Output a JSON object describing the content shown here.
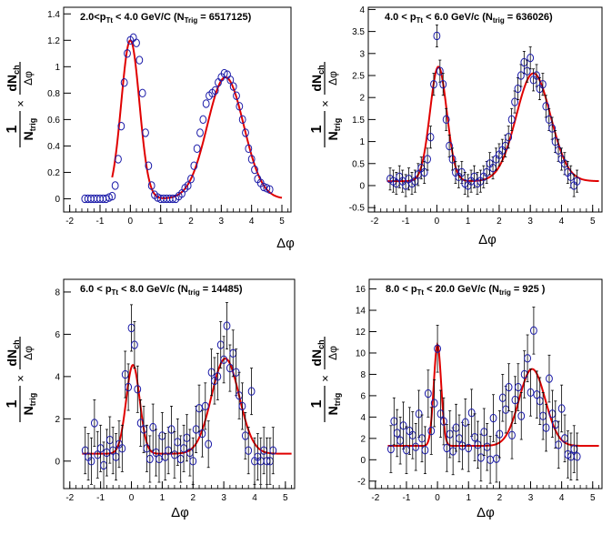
{
  "chart_data": [
    {
      "type": "scatter",
      "title_parts": [
        "2.0<p",
        "Tt",
        " < 4.0 GeV/C (N",
        "Trig",
        " = 6517125)"
      ],
      "xlabel": "Δφ",
      "ylabel_parts": [
        "1",
        "N",
        "trig",
        "×",
        "dN",
        "ch",
        "Δφ"
      ],
      "xlim": [
        -2.2,
        5.3
      ],
      "ylim": [
        -0.1,
        1.45
      ],
      "xticks": [
        -2,
        -1,
        0,
        1,
        2,
        3,
        4,
        5
      ],
      "yticks": [
        0,
        0.2,
        0.4,
        0.6,
        0.8,
        1,
        1.2,
        1.4
      ],
      "ytick_labels": [
        "0",
        "0.2",
        "0.4",
        "0.6",
        "0.8",
        "1",
        "1.2",
        "1.4"
      ],
      "fit": {
        "base": 0.0,
        "near": {
          "A": 1.2,
          "mu": 0.0,
          "sigma": 0.3
        },
        "away": {
          "A": 0.92,
          "mu": 3.14,
          "sigma": 0.6
        },
        "x_range": [
          -0.6,
          5.0
        ],
        "color": "#e00000"
      },
      "series": [
        {
          "x": [
            -1.5,
            -1.4,
            -1.3,
            -1.2,
            -1.1,
            -1.0,
            -0.9,
            -0.8,
            -0.7,
            -0.6,
            -0.5,
            -0.4,
            -0.3,
            -0.2,
            -0.1,
            0.0,
            0.1,
            0.2,
            0.3,
            0.4,
            0.5,
            0.6,
            0.7,
            0.8,
            0.9,
            1.0,
            1.1,
            1.2,
            1.3,
            1.4,
            1.5,
            1.6,
            1.7,
            1.8,
            1.9,
            2.0,
            2.1,
            2.2,
            2.3,
            2.4,
            2.5,
            2.6,
            2.7,
            2.8,
            2.9,
            3.0,
            3.1,
            3.2,
            3.3,
            3.4,
            3.5,
            3.6,
            3.7,
            3.8,
            3.9,
            4.0,
            4.1,
            4.2,
            4.3,
            4.4,
            4.5,
            4.6
          ],
          "y": [
            0,
            0,
            0,
            0,
            0,
            0,
            0,
            0,
            0.01,
            0.02,
            0.1,
            0.3,
            0.55,
            0.88,
            1.1,
            1.2,
            1.22,
            1.18,
            1.05,
            0.8,
            0.5,
            0.25,
            0.1,
            0.03,
            0.01,
            0,
            0,
            0,
            0,
            0,
            0,
            0.02,
            0.04,
            0.08,
            0.1,
            0.15,
            0.25,
            0.38,
            0.5,
            0.6,
            0.72,
            0.78,
            0.8,
            0.82,
            0.88,
            0.92,
            0.95,
            0.94,
            0.9,
            0.85,
            0.78,
            0.7,
            0.6,
            0.5,
            0.38,
            0.3,
            0.22,
            0.15,
            0.12,
            0.09,
            0.08,
            0.07
          ],
          "err": 0.02
        }
      ]
    },
    {
      "type": "scatter",
      "title_parts": [
        "4.0 < p",
        "Tt",
        " < 6.0 GeV/c (N",
        "trig",
        " =  636026)"
      ],
      "xlabel": "Δφ",
      "ylabel_parts": [
        "1",
        "N",
        "trig",
        "×",
        "dN",
        "ch",
        "Δφ"
      ],
      "xlim": [
        -2.2,
        5.3
      ],
      "ylim": [
        -0.6,
        4.05
      ],
      "xticks": [
        -2,
        -1,
        0,
        1,
        2,
        3,
        4,
        5
      ],
      "yticks": [
        -0.5,
        0,
        0.5,
        1,
        1.5,
        2,
        2.5,
        3,
        3.5,
        4
      ],
      "ytick_labels": [
        "-0.5",
        "0",
        "0.5",
        "1",
        "1.5",
        "2",
        "2.5",
        "3",
        "3.5",
        "4"
      ],
      "fit": {
        "base": 0.1,
        "near": {
          "A": 2.6,
          "mu": 0.05,
          "sigma": 0.27
        },
        "away": {
          "A": 2.45,
          "mu": 3.1,
          "sigma": 0.55
        },
        "x_range": [
          -1.6,
          5.2
        ],
        "color": "#e00000"
      },
      "series": [
        {
          "x": [
            -1.5,
            -1.4,
            -1.3,
            -1.2,
            -1.1,
            -1.0,
            -0.9,
            -0.8,
            -0.7,
            -0.6,
            -0.5,
            -0.4,
            -0.3,
            -0.2,
            -0.1,
            0.0,
            0.1,
            0.2,
            0.3,
            0.4,
            0.5,
            0.6,
            0.7,
            0.8,
            0.9,
            1.0,
            1.1,
            1.2,
            1.3,
            1.4,
            1.5,
            1.6,
            1.7,
            1.8,
            1.9,
            2.0,
            2.1,
            2.2,
            2.3,
            2.4,
            2.5,
            2.6,
            2.7,
            2.8,
            2.9,
            3.0,
            3.1,
            3.2,
            3.3,
            3.4,
            3.5,
            3.6,
            3.7,
            3.8,
            3.9,
            4.0,
            4.1,
            4.2,
            4.3,
            4.4,
            4.5
          ],
          "y": [
            0.15,
            0.1,
            0.05,
            0.2,
            0.1,
            0.0,
            0.15,
            0.05,
            0.1,
            0.25,
            0.4,
            0.3,
            0.6,
            1.1,
            2.3,
            3.4,
            2.6,
            2.3,
            1.5,
            0.9,
            0.6,
            0.3,
            0.2,
            0.3,
            0.05,
            0.0,
            0.1,
            0.2,
            0.05,
            0.1,
            0.2,
            0.3,
            0.5,
            0.4,
            0.6,
            0.7,
            0.8,
            0.9,
            1.1,
            1.5,
            1.9,
            2.2,
            2.5,
            2.8,
            2.6,
            2.9,
            2.4,
            2.5,
            2.2,
            2.3,
            1.8,
            1.5,
            1.3,
            1.0,
            0.8,
            0.6,
            0.5,
            0.3,
            0.2,
            0.0,
            0.1
          ],
          "err": 0.25
        }
      ]
    },
    {
      "type": "scatter",
      "title_parts": [
        "6.0 < p",
        "Tt",
        " < 8.0  GeV/c (N",
        "trig",
        " = 14485)"
      ],
      "xlabel": "Δφ",
      "ylabel_parts": [
        "1",
        "N",
        "trig",
        "×",
        "dN",
        "ch",
        "Δφ"
      ],
      "xlim": [
        -2.2,
        5.3
      ],
      "ylim": [
        -1.3,
        8.6
      ],
      "xticks": [
        -2,
        -1,
        0,
        1,
        2,
        3,
        4,
        5
      ],
      "yticks": [
        0,
        2,
        4,
        6,
        8
      ],
      "ytick_labels": [
        "0",
        "2",
        "4",
        "6",
        "8"
      ],
      "fit": {
        "base": 0.35,
        "near": {
          "A": 4.2,
          "mu": 0.05,
          "sigma": 0.22
        },
        "away": {
          "A": 4.5,
          "mu": 3.05,
          "sigma": 0.45
        },
        "x_range": [
          -1.6,
          5.2
        ],
        "color": "#e00000"
      },
      "series": [
        {
          "x": [
            -1.5,
            -1.4,
            -1.3,
            -1.2,
            -1.1,
            -1.0,
            -0.9,
            -0.8,
            -0.7,
            -0.6,
            -0.5,
            -0.4,
            -0.3,
            -0.2,
            -0.1,
            0.0,
            0.1,
            0.2,
            0.3,
            0.4,
            0.5,
            0.6,
            0.7,
            0.8,
            0.9,
            1.0,
            1.1,
            1.2,
            1.3,
            1.4,
            1.5,
            1.6,
            1.7,
            1.8,
            1.9,
            2.0,
            2.1,
            2.2,
            2.3,
            2.4,
            2.5,
            2.6,
            2.7,
            2.8,
            2.9,
            3.0,
            3.1,
            3.2,
            3.3,
            3.4,
            3.5,
            3.6,
            3.7,
            3.8,
            3.9,
            4.0,
            4.1,
            4.2,
            4.3,
            4.4,
            4.5,
            4.6
          ],
          "y": [
            0.5,
            0.2,
            0.0,
            1.8,
            0.3,
            0.6,
            -0.2,
            0.4,
            1.0,
            0.5,
            0.2,
            0.8,
            0.6,
            4.1,
            3.5,
            6.3,
            5.5,
            3.4,
            1.8,
            1.5,
            0.6,
            0.1,
            1.6,
            0.4,
            0.1,
            1.2,
            0.2,
            0.5,
            1.5,
            0.3,
            0.9,
            0.1,
            0.6,
            1.1,
            0.4,
            0.0,
            1.5,
            2.5,
            1.3,
            2.6,
            0.8,
            4.2,
            3.8,
            4.0,
            5.5,
            4.8,
            6.4,
            4.4,
            5.1,
            4.2,
            3.1,
            2.6,
            1.2,
            0.5,
            3.3,
            0.0,
            0.2,
            0.0,
            0.5,
            0.0,
            0.0,
            0.5
          ],
          "err": 1.1
        }
      ]
    },
    {
      "type": "scatter",
      "title_parts": [
        "8.0 < p",
        "Tt",
        " < 20.0 GeV/c (N",
        "trig",
        " = 925 )"
      ],
      "xlabel": "Δφ",
      "ylabel_parts": [
        "1",
        "N",
        "trig",
        "×",
        "dN",
        "ch",
        "Δφ"
      ],
      "xlim": [
        -2.2,
        5.3
      ],
      "ylim": [
        -2.7,
        16.9
      ],
      "xticks": [
        -2,
        -1,
        0,
        1,
        2,
        3,
        4,
        5
      ],
      "yticks": [
        -2,
        0,
        2,
        4,
        6,
        8,
        10,
        12,
        14,
        16
      ],
      "ytick_labels": [
        "-2",
        "0",
        "2",
        "4",
        "6",
        "8",
        "10",
        "12",
        "14",
        "16"
      ],
      "fit": {
        "base": 1.3,
        "near": {
          "A": 9.5,
          "mu": 0.0,
          "sigma": 0.12
        },
        "away": {
          "A": 7.2,
          "mu": 3.05,
          "sigma": 0.42
        },
        "x_range": [
          -1.6,
          5.2
        ],
        "color": "#e00000"
      },
      "series": [
        {
          "x": [
            -1.5,
            -1.4,
            -1.3,
            -1.2,
            -1.1,
            -1.0,
            -0.9,
            -0.8,
            -0.7,
            -0.6,
            -0.5,
            -0.4,
            -0.3,
            -0.2,
            -0.1,
            0.0,
            0.1,
            0.2,
            0.3,
            0.4,
            0.5,
            0.6,
            0.7,
            0.8,
            0.9,
            1.0,
            1.1,
            1.2,
            1.3,
            1.4,
            1.5,
            1.6,
            1.7,
            1.8,
            1.9,
            2.0,
            2.1,
            2.2,
            2.3,
            2.4,
            2.5,
            2.6,
            2.7,
            2.8,
            2.9,
            3.0,
            3.1,
            3.2,
            3.3,
            3.4,
            3.5,
            3.6,
            3.7,
            3.8,
            3.9,
            4.0,
            4.1,
            4.2,
            4.3,
            4.4,
            4.5
          ],
          "y": [
            1.0,
            3.6,
            2.5,
            1.8,
            3.2,
            0.9,
            2.7,
            2.3,
            1.2,
            4.3,
            2.0,
            0.9,
            6.2,
            2.7,
            5.3,
            10.4,
            4.3,
            3.6,
            1.1,
            2.4,
            0.8,
            3.0,
            2.0,
            1.3,
            3.5,
            1.1,
            4.4,
            2.1,
            1.4,
            0.2,
            2.6,
            1.2,
            0.0,
            3.9,
            0.1,
            2.4,
            5.8,
            4.7,
            6.8,
            2.3,
            5.6,
            6.8,
            4.1,
            8.0,
            9.5,
            6.3,
            12.1,
            6.1,
            5.5,
            4.1,
            3.0,
            7.6,
            4.3,
            3.3,
            1.4,
            4.8,
            2.0,
            0.5,
            0.3,
            1.0,
            0.3
          ],
          "err": 2.2
        }
      ]
    }
  ]
}
